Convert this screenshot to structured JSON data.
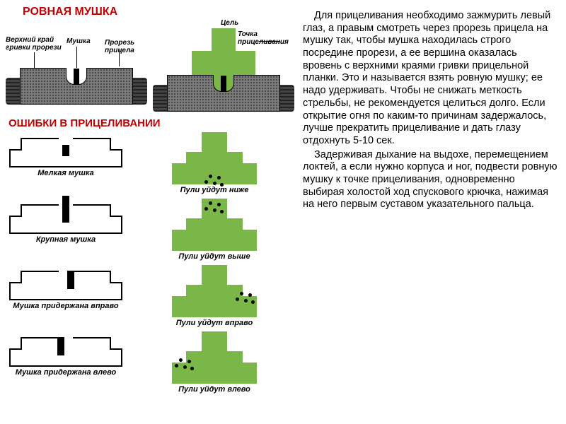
{
  "colors": {
    "title_red": "#c00000",
    "green_target": "#7ab648",
    "sight_body": "#7a7a7a",
    "sight_body_dark": "#3a3a3a",
    "sight_side": "#444444",
    "background": "#ffffff",
    "black": "#000000"
  },
  "typography": {
    "title_fontsize": 16,
    "caption_fontsize": 11,
    "body_fontsize": 14.5,
    "font_family": "Arial"
  },
  "titles": {
    "heading1": "РОВНАЯ МУШКА",
    "heading2": "ОШИБКИ В ПРИЦЕЛИВАНИИ"
  },
  "top_diagram": {
    "left": {
      "label_top_left": "Верхний край гривки прорези",
      "label_mushka": "Мушка",
      "label_prorez": "Прорезь прицела"
    },
    "right": {
      "label_tsel": "Цель",
      "label_tochka": "Точка прицеливания"
    }
  },
  "errors": [
    {
      "sight_caption": "Мелкая мушка",
      "post_variant": "post-low",
      "target_caption": "Пули уйдут ниже",
      "bullet_pos": "b-low"
    },
    {
      "sight_caption": "Крупная мушка",
      "post_variant": "post-high",
      "target_caption": "Пули уйдут выше",
      "bullet_pos": "b-high"
    },
    {
      "sight_caption": "Мушка придержана вправо",
      "post_variant": "post-right",
      "target_caption": "Пули уйдут вправо",
      "bullet_pos": "b-right"
    },
    {
      "sight_caption": "Мушка придержана влево",
      "post_variant": "post-left",
      "target_caption": "Пули уйдут влево",
      "bullet_pos": "b-left"
    }
  ],
  "paragraphs": [
    "Для прицеливания необходимо зажмурить левый глаз, а правым смотреть через прорезь прицела на мушку так, чтобы мушка находилась строго посредине прорези, а ее вершина оказалась вровень с верхними краями гривки прицельной планки. Это и называется взять ровную мушку; ее надо удерживать. Чтобы не снижать меткость стрельбы, не рекомендуется целиться долго. Если открытие огня по каким-то причинам задержалось, лучше прекратить прицеливание и дать глазу отдохнуть 5-10 сек.",
    "Задерживая дыхание на выдохе, перемещением локтей, а если нужно корпуса и ног, подвести ровную мушку к точке прицеливания, одновременно выбирая холостой ход спускового крючка, нажимая на него первым суставом указательного пальца."
  ]
}
